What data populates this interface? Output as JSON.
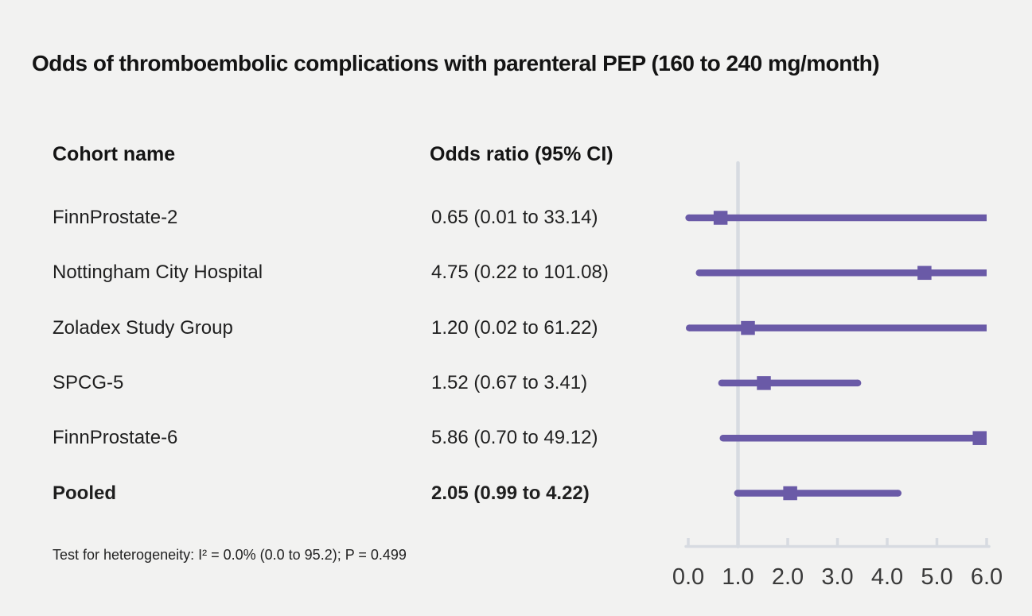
{
  "figure": {
    "title": "Odds of thromboembolic complications with parenteral PEP (160 to 240 mg/month)",
    "footnote": "Test for heterogeneity: I² = 0.0% (0.0 to 95.2); P = 0.499"
  },
  "table": {
    "headers": [
      "Cohort name",
      "Odds ratio (95% CI)"
    ]
  },
  "chart_data": {
    "type": "forest",
    "title": "Odds of thromboembolic complications with parenteral PEP (160 to 240 mg/month)",
    "xlabel": "",
    "xlim": [
      0,
      6
    ],
    "x_ticks": [
      "0.0",
      "1.0",
      "2.0",
      "3.0",
      "4.0",
      "5.0",
      "6.0"
    ],
    "x_tick_values": [
      0,
      1,
      2,
      3,
      4,
      5,
      6
    ],
    "reference_line_x": 1.0,
    "grid": false,
    "rows": [
      {
        "cohort": "FinnProstate-2",
        "or": 0.65,
        "ci_low": 0.01,
        "ci_high": 33.14,
        "label": "0.65 (0.01 to 33.14)",
        "bold": false
      },
      {
        "cohort": "Nottingham City Hospital",
        "or": 4.75,
        "ci_low": 0.22,
        "ci_high": 101.08,
        "label": "4.75 (0.22 to 101.08)",
        "bold": false
      },
      {
        "cohort": "Zoladex Study Group",
        "or": 1.2,
        "ci_low": 0.02,
        "ci_high": 61.22,
        "label": "1.20 (0.02 to 61.22)",
        "bold": false
      },
      {
        "cohort": "SPCG-5",
        "or": 1.52,
        "ci_low": 0.67,
        "ci_high": 3.41,
        "label": "1.52 (0.67 to 3.41)",
        "bold": false
      },
      {
        "cohort": "FinnProstate-6",
        "or": 5.86,
        "ci_low": 0.7,
        "ci_high": 49.12,
        "label": "5.86 (0.70 to 49.12)",
        "bold": false
      },
      {
        "cohort": "Pooled",
        "or": 2.05,
        "ci_low": 0.99,
        "ci_high": 4.22,
        "label": "2.05 (0.99 to 4.22)",
        "bold": true
      }
    ],
    "colors": {
      "marker": "#6a5aa7",
      "ci_line": "#6a5aa7",
      "axis": "#d7dbe1",
      "reference_line": "#d7dbe1",
      "background": "#f2f2f1",
      "tick_text": "#3a3a3a",
      "text": "#141414"
    }
  }
}
